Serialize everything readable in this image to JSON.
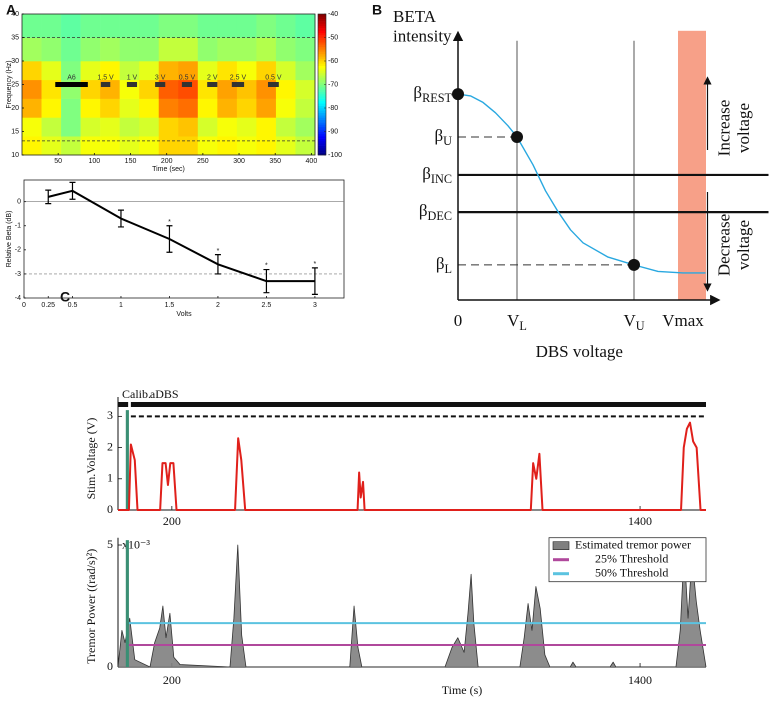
{
  "panel_labels": [
    "A",
    "B",
    "C"
  ],
  "chart_data": [
    {
      "type": "heatmap",
      "xlabel": "Time (sec)",
      "ylabel": "Frequency (Hz)",
      "xlim": [
        0,
        405
      ],
      "ylim": [
        10,
        40
      ],
      "xticks": [
        50,
        100,
        150,
        200,
        250,
        300,
        350,
        400
      ],
      "yticks": [
        10,
        15,
        20,
        25,
        30,
        35,
        40
      ],
      "clim": [
        -100,
        -40
      ],
      "cticks": [
        -40,
        -50,
        -60,
        -70,
        -80,
        -90,
        -100
      ],
      "x_edges": [
        0,
        27,
        54,
        81,
        108,
        135,
        162,
        189,
        216,
        243,
        270,
        297,
        324,
        351,
        378,
        405
      ],
      "y_edges": [
        10,
        14,
        18,
        22,
        26,
        30,
        35,
        40
      ],
      "z": [
        [
          -62,
          -64,
          -66,
          -63,
          -63,
          -64,
          -63,
          -60,
          -60,
          -63,
          -62,
          -63,
          -62,
          -64,
          -66
        ],
        [
          -63,
          -66,
          -70,
          -65,
          -64,
          -66,
          -65,
          -60,
          -59,
          -65,
          -63,
          -64,
          -62,
          -66,
          -68
        ],
        [
          -58,
          -62,
          -70,
          -62,
          -60,
          -64,
          -62,
          -55,
          -54,
          -62,
          -58,
          -60,
          -57,
          -63,
          -66
        ],
        [
          -56,
          -61,
          -69,
          -60,
          -58,
          -63,
          -60,
          -53,
          -52,
          -61,
          -57,
          -59,
          -56,
          -62,
          -65
        ],
        [
          -60,
          -64,
          -70,
          -64,
          -62,
          -66,
          -64,
          -58,
          -57,
          -64,
          -61,
          -63,
          -60,
          -65,
          -68
        ],
        [
          -68,
          -69,
          -71,
          -69,
          -68,
          -69,
          -69,
          -66,
          -66,
          -69,
          -68,
          -68,
          -67,
          -69,
          -70
        ],
        [
          -71,
          -71,
          -72,
          -71,
          -71,
          -71,
          -71,
          -70,
          -70,
          -71,
          -71,
          -71,
          -70,
          -71,
          -72
        ]
      ],
      "reference_lines": [
        13,
        35
      ],
      "stim_level": 25,
      "stim_bars": [
        {
          "label": "A6",
          "start": 46,
          "end": 91
        },
        {
          "label": "1.5 V",
          "start": 109,
          "end": 122
        },
        {
          "label": "1 V",
          "start": 145,
          "end": 159
        },
        {
          "label": "3 V",
          "start": 184,
          "end": 198
        },
        {
          "label": "0.5 V",
          "start": 221,
          "end": 235
        },
        {
          "label": "2 V",
          "start": 256,
          "end": 270
        },
        {
          "label": "2.5 V",
          "start": 290,
          "end": 307
        },
        {
          "label": "0.5 V",
          "start": 340,
          "end": 355
        }
      ]
    },
    {
      "type": "errorbar",
      "xlabel": "Volts",
      "ylabel": "Relative Beta (dB)",
      "xlim": [
        0,
        3.3
      ],
      "ylim": [
        -4,
        0.9
      ],
      "xticks": [
        0,
        0.25,
        0.5,
        1,
        1.5,
        2,
        2.5,
        3
      ],
      "yticks": [
        -4,
        -3,
        -2,
        -1,
        0
      ],
      "x": [
        0.25,
        0.5,
        1,
        1.5,
        2,
        2.5,
        3
      ],
      "values": [
        0.2,
        0.45,
        -0.7,
        -1.55,
        -2.6,
        -3.3,
        -3.3
      ],
      "errors": [
        0.28,
        0.35,
        0.35,
        0.55,
        0.4,
        0.48,
        0.55
      ],
      "color": "#000000",
      "reference_lines": [
        {
          "value": 0,
          "style": "solid"
        },
        {
          "value": -3,
          "style": "dashed"
        }
      ],
      "annotations": [
        {
          "text": "*",
          "x": 1.5,
          "y": -0.85
        },
        {
          "text": "*",
          "x": 2,
          "y": -2.05
        },
        {
          "text": "*",
          "x": 2.5,
          "y": -2.65
        },
        {
          "text": "*",
          "x": 3,
          "y": -2.6
        }
      ]
    },
    {
      "type": "line",
      "ylabel": [
        "BETA",
        "intensity"
      ],
      "xlabel": "DBS voltage",
      "axis_arrows": true,
      "xlim": [
        0,
        10.1
      ],
      "ylim": [
        0,
        10.2
      ],
      "xticks": [
        0,
        {
          "value": 2.36,
          "label": "V",
          "sub": "L",
          "line": "solid"
        },
        {
          "value": 7.04,
          "label": "V",
          "sub": "U",
          "line": "solid"
        },
        {
          "value": 9.0,
          "label": "Vmax"
        }
      ],
      "yticks": [
        {
          "value": 7.92,
          "label": "β",
          "sub": "REST"
        },
        {
          "value": 6.27,
          "label": "β",
          "sub": "U",
          "line": "dashed",
          "until": 2.36
        },
        {
          "value": 4.81,
          "label": "β",
          "sub": "INC",
          "line": "solid"
        },
        {
          "value": 3.38,
          "label": "β",
          "sub": "DEC",
          "line": "solid"
        },
        {
          "value": 1.35,
          "label": "β",
          "sub": "L",
          "line": "dashed",
          "until": 7.04
        }
      ],
      "band": [
        8.8,
        9.92
      ],
      "band_color": "#f7a088",
      "series": [
        {
          "color": "#29a8e0",
          "x": [
            0,
            0.5,
            1,
            1.5,
            2,
            2.36,
            3,
            3.5,
            4,
            4.5,
            5,
            6,
            7.04,
            8,
            9,
            9.9
          ],
          "values": [
            7.92,
            7.85,
            7.6,
            7.2,
            6.7,
            6.27,
            5.2,
            4.2,
            3.4,
            2.7,
            2.2,
            1.65,
            1.35,
            1.1,
            1.04,
            1.04
          ]
        }
      ],
      "points": {
        "x": [
          0,
          2.36,
          7.04
        ],
        "y": [
          7.92,
          6.27,
          1.35
        ],
        "color": "#111111"
      },
      "annotations": [
        {
          "text": [
            "Increase",
            "voltage"
          ],
          "direction": "up"
        },
        {
          "text": [
            "Decrease",
            "voltage"
          ],
          "direction": "down"
        }
      ]
    },
    {
      "type": "line",
      "ylabel": "Stim.Voltage (V)",
      "xlim": [
        62,
        1569
      ],
      "ylim": [
        0,
        3.3
      ],
      "xticks": [
        200,
        1400
      ],
      "yticks": [
        0,
        1,
        2,
        3
      ],
      "series": [
        {
          "color": "#e0201b",
          "x": [
            62,
            90,
            95,
            105,
            112,
            170,
            176,
            184,
            190,
            196,
            204,
            212,
            362,
            370,
            378,
            388,
            676,
            680,
            684,
            690,
            694,
            1120,
            1126,
            1134,
            1142,
            1150,
            1505,
            1512,
            1520,
            1528,
            1536,
            1545,
            1555,
            1569
          ],
          "values": [
            0,
            0,
            2.1,
            1.6,
            0,
            0,
            1.5,
            1.5,
            0.8,
            1.5,
            1.5,
            0,
            0,
            2.3,
            1.6,
            0,
            0,
            1.2,
            0.4,
            0.9,
            0,
            0,
            1.5,
            1.0,
            1.8,
            0,
            0,
            2.0,
            2.6,
            2.8,
            2.2,
            2.0,
            0,
            0
          ]
        }
      ],
      "phases": [
        {
          "label": "Calib.",
          "start": 62,
          "end": 88
        },
        {
          "label": "aDBS",
          "start": 95,
          "end": 1569
        }
      ],
      "calibration": {
        "start": 82,
        "end": 90,
        "value": 3.2,
        "color": "#3a8f74"
      },
      "max_voltage": {
        "value": 3,
        "start": 95
      }
    },
    {
      "type": "area",
      "xlabel": "Time (s)",
      "ylabel": "Tremor Power ((rad/s)²)",
      "scale_label": "x10⁻³",
      "xlim": [
        62,
        1569
      ],
      "ylim": [
        0,
        5.3
      ],
      "xticks": [
        200,
        1400
      ],
      "yticks": [
        0,
        5
      ],
      "series": [
        {
          "name": "Estimated tremor power",
          "color": "#7f7f7f",
          "x": [
            62,
            72,
            80,
            92,
            105,
            144,
            156,
            169,
            177,
            185,
            195,
            205,
            221,
            349,
            359,
            369,
            379,
            390,
            656,
            667,
            677,
            687,
            900,
            918,
            933,
            949,
            959,
            967,
            974,
            985,
            1092,
            1103,
            1113,
            1123,
            1133,
            1144,
            1156,
            1169,
            1221,
            1228,
            1236,
            1323,
            1331,
            1338,
            1492,
            1503,
            1513,
            1523,
            1533,
            1544,
            1554,
            1569
          ],
          "values": [
            0,
            1.5,
            1.0,
            2.0,
            0.3,
            0,
            1.0,
            1.6,
            2.5,
            1.2,
            2.2,
            0.4,
            0.1,
            0,
            2.0,
            5.0,
            1.3,
            0,
            0,
            2.5,
            0.8,
            0,
            0,
            0.8,
            1.2,
            0.6,
            2.2,
            3.8,
            1.8,
            0,
            0,
            1.2,
            2.6,
            1.5,
            3.3,
            2.4,
            0.5,
            0,
            0,
            0.2,
            0,
            0,
            0.2,
            0,
            0,
            1.5,
            4.8,
            2.0,
            4.5,
            2.7,
            1.5,
            0
          ]
        }
      ],
      "thresholds": [
        {
          "name": "25% Threshold",
          "color": "#b0489c",
          "value": 0.9
        },
        {
          "name": "50% Threshold",
          "color": "#5bc3e0",
          "value": 1.8
        }
      ],
      "calibration": {
        "start": 82,
        "end": 90,
        "value": 5.2,
        "color": "#3a8f74"
      },
      "legend": "upper right"
    }
  ]
}
